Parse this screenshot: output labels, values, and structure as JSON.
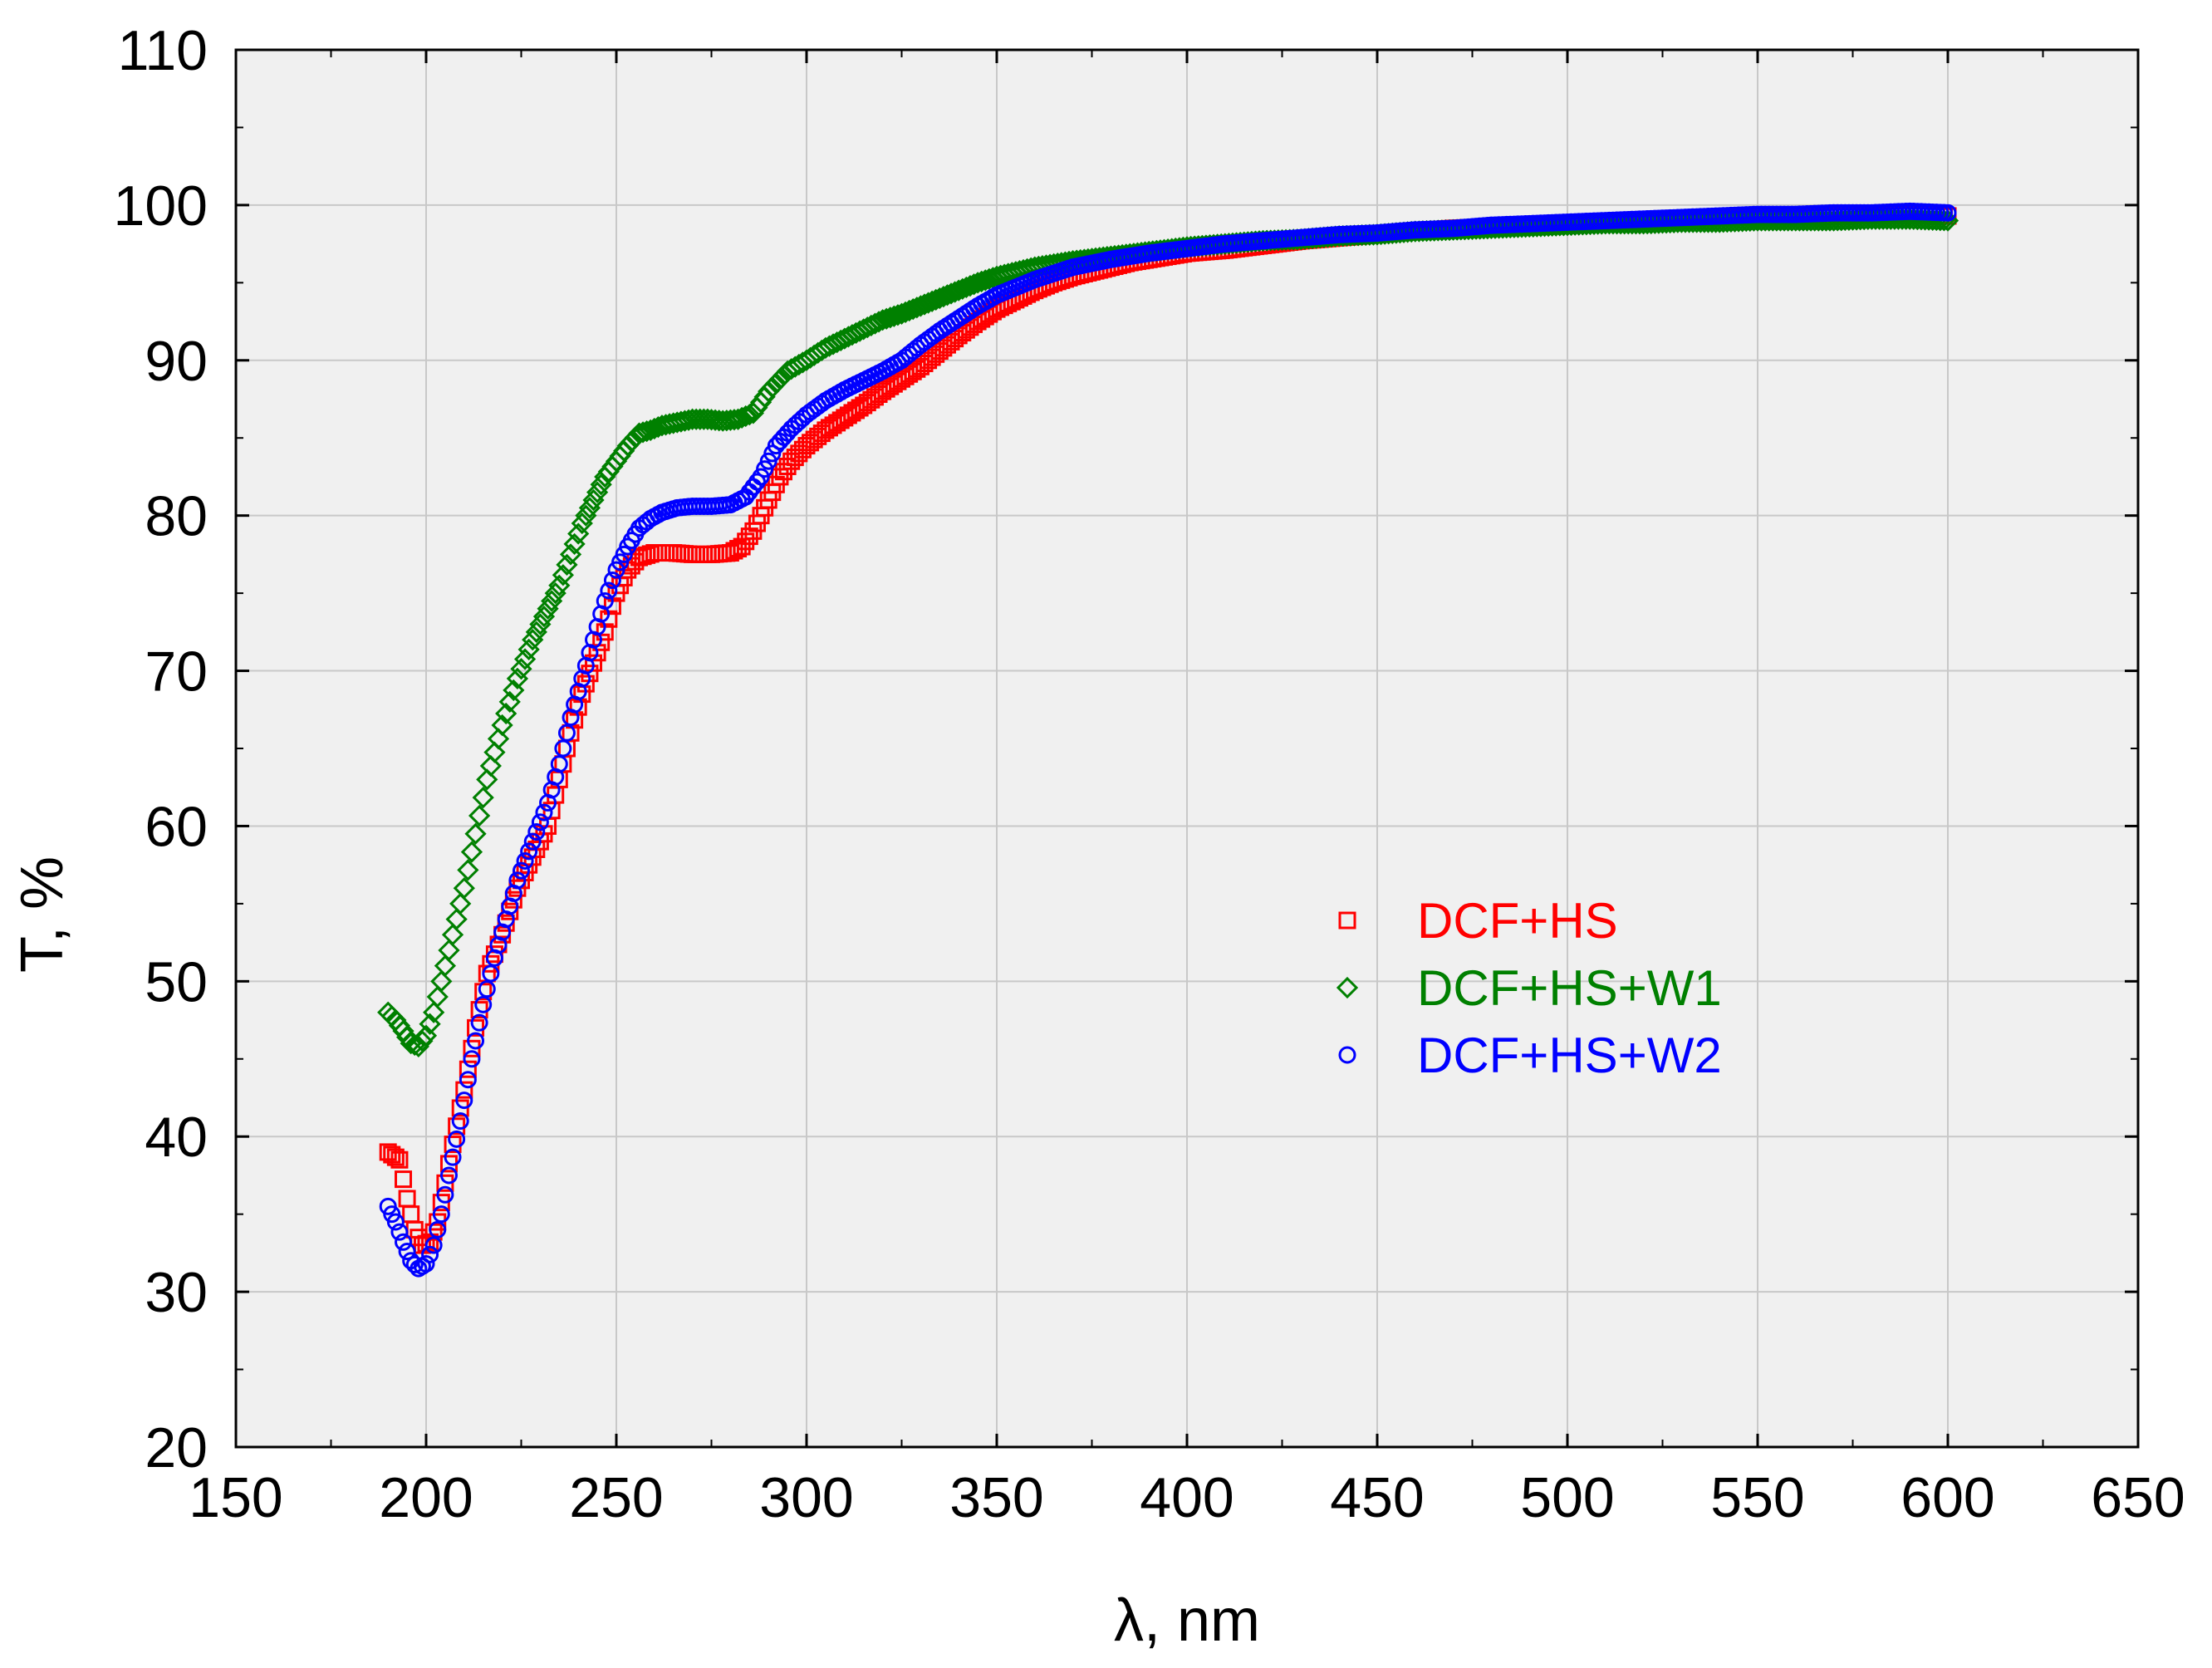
{
  "chart_data": {
    "type": "scatter",
    "xlabel": "λ, nm",
    "ylabel": "T, %",
    "xlim": [
      150,
      650
    ],
    "ylim": [
      20,
      110
    ],
    "x_ticks": [
      "150",
      "200",
      "250",
      "300",
      "350",
      "400",
      "450",
      "500",
      "550",
      "600",
      "650"
    ],
    "y_ticks": [
      "20",
      "30",
      "40",
      "50",
      "60",
      "70",
      "80",
      "90",
      "100",
      "110"
    ],
    "grid": true,
    "legend_position": "center-right",
    "plot_background": "#f0f0f0",
    "series": [
      {
        "name": "DCF+HS",
        "color": "#ff0000",
        "marker": "square",
        "points": [
          [
            190,
            39
          ],
          [
            193,
            38.5
          ],
          [
            195,
            36
          ],
          [
            197,
            34
          ],
          [
            199,
            33
          ],
          [
            201,
            33.2
          ],
          [
            203,
            34.5
          ],
          [
            205,
            37
          ],
          [
            207,
            39.5
          ],
          [
            210,
            43
          ],
          [
            213,
            47
          ],
          [
            216,
            50.5
          ],
          [
            220,
            53
          ],
          [
            224,
            56
          ],
          [
            228,
            58
          ],
          [
            232,
            60
          ],
          [
            235,
            63
          ],
          [
            238,
            66
          ],
          [
            241,
            68.5
          ],
          [
            244,
            70.5
          ],
          [
            247,
            72.5
          ],
          [
            250,
            75
          ],
          [
            253,
            76.5
          ],
          [
            256,
            77.3
          ],
          [
            260,
            77.6
          ],
          [
            265,
            77.6
          ],
          [
            270,
            77.5
          ],
          [
            275,
            77.5
          ],
          [
            280,
            77.6
          ],
          [
            283,
            78
          ],
          [
            286,
            79
          ],
          [
            290,
            81
          ],
          [
            293,
            82.5
          ],
          [
            296,
            83.5
          ],
          [
            300,
            84.5
          ],
          [
            305,
            85.5
          ],
          [
            310,
            86.3
          ],
          [
            315,
            87.1
          ],
          [
            320,
            88
          ],
          [
            325,
            88.8
          ],
          [
            330,
            89.6
          ],
          [
            335,
            90.6
          ],
          [
            340,
            91.6
          ],
          [
            345,
            92.5
          ],
          [
            350,
            93.3
          ],
          [
            355,
            93.9
          ],
          [
            360,
            94.5
          ],
          [
            365,
            95
          ],
          [
            370,
            95.4
          ],
          [
            375,
            95.7
          ],
          [
            380,
            96
          ],
          [
            385,
            96.3
          ],
          [
            390,
            96.5
          ],
          [
            395,
            96.7
          ],
          [
            400,
            96.9
          ],
          [
            410,
            97.1
          ],
          [
            420,
            97.4
          ],
          [
            430,
            97.7
          ],
          [
            440,
            97.9
          ],
          [
            450,
            98.1
          ],
          [
            460,
            98.3
          ],
          [
            470,
            98.5
          ],
          [
            480,
            98.6
          ],
          [
            490,
            98.7
          ],
          [
            500,
            98.8
          ],
          [
            510,
            98.9
          ],
          [
            520,
            99
          ],
          [
            530,
            99.1
          ],
          [
            540,
            99.2
          ],
          [
            550,
            99.2
          ],
          [
            560,
            99.3
          ],
          [
            570,
            99.3
          ],
          [
            580,
            99.4
          ],
          [
            590,
            99.4
          ],
          [
            600,
            99.3
          ]
        ]
      },
      {
        "name": "DCF+HS+W1",
        "color": "#008000",
        "marker": "diamond",
        "points": [
          [
            190,
            48
          ],
          [
            192,
            47.5
          ],
          [
            194,
            46.8
          ],
          [
            196,
            46
          ],
          [
            198,
            45.8
          ],
          [
            200,
            46.5
          ],
          [
            202,
            48
          ],
          [
            204,
            50
          ],
          [
            207,
            53
          ],
          [
            210,
            56
          ],
          [
            213,
            59.5
          ],
          [
            216,
            63
          ],
          [
            220,
            66.5
          ],
          [
            224,
            69.5
          ],
          [
            228,
            72
          ],
          [
            232,
            74
          ],
          [
            235,
            75.5
          ],
          [
            238,
            77.5
          ],
          [
            241,
            79.5
          ],
          [
            244,
            81
          ],
          [
            247,
            82.5
          ],
          [
            250,
            83.5
          ],
          [
            253,
            84.5
          ],
          [
            256,
            85.3
          ],
          [
            259,
            85.5
          ],
          [
            262,
            85.8
          ],
          [
            266,
            86
          ],
          [
            270,
            86.2
          ],
          [
            274,
            86.2
          ],
          [
            278,
            86.1
          ],
          [
            282,
            86.2
          ],
          [
            286,
            86.6
          ],
          [
            290,
            88
          ],
          [
            295,
            89.3
          ],
          [
            300,
            90
          ],
          [
            305,
            90.8
          ],
          [
            310,
            91.4
          ],
          [
            315,
            92
          ],
          [
            320,
            92.6
          ],
          [
            325,
            93
          ],
          [
            330,
            93.5
          ],
          [
            335,
            94
          ],
          [
            340,
            94.5
          ],
          [
            345,
            95
          ],
          [
            350,
            95.4
          ],
          [
            355,
            95.7
          ],
          [
            360,
            96
          ],
          [
            365,
            96.2
          ],
          [
            370,
            96.4
          ],
          [
            380,
            96.7
          ],
          [
            390,
            97
          ],
          [
            400,
            97.3
          ],
          [
            410,
            97.5
          ],
          [
            420,
            97.7
          ],
          [
            430,
            97.8
          ],
          [
            440,
            98
          ],
          [
            450,
            98.1
          ],
          [
            460,
            98.3
          ],
          [
            470,
            98.4
          ],
          [
            480,
            98.5
          ],
          [
            490,
            98.6
          ],
          [
            500,
            98.7
          ],
          [
            510,
            98.8
          ],
          [
            520,
            98.8
          ],
          [
            530,
            98.9
          ],
          [
            540,
            98.9
          ],
          [
            550,
            99
          ],
          [
            560,
            99
          ],
          [
            570,
            99
          ],
          [
            580,
            99.1
          ],
          [
            590,
            99.1
          ],
          [
            600,
            99
          ]
        ]
      },
      {
        "name": "DCF+HS+W2",
        "color": "#0000ff",
        "marker": "circle",
        "points": [
          [
            190,
            35.5
          ],
          [
            192,
            34.5
          ],
          [
            194,
            33.2
          ],
          [
            196,
            32
          ],
          [
            198,
            31.5
          ],
          [
            200,
            31.8
          ],
          [
            202,
            33
          ],
          [
            204,
            35
          ],
          [
            206,
            37.5
          ],
          [
            209,
            41
          ],
          [
            212,
            45
          ],
          [
            215,
            48.5
          ],
          [
            218,
            51.5
          ],
          [
            221,
            54
          ],
          [
            224,
            56.5
          ],
          [
            228,
            59
          ],
          [
            232,
            61.5
          ],
          [
            235,
            64
          ],
          [
            238,
            67
          ],
          [
            241,
            69.5
          ],
          [
            244,
            72
          ],
          [
            247,
            74.5
          ],
          [
            250,
            76.5
          ],
          [
            253,
            78
          ],
          [
            256,
            79.2
          ],
          [
            259,
            79.8
          ],
          [
            262,
            80.2
          ],
          [
            266,
            80.5
          ],
          [
            270,
            80.6
          ],
          [
            275,
            80.6
          ],
          [
            280,
            80.7
          ],
          [
            284,
            81.2
          ],
          [
            288,
            82.5
          ],
          [
            292,
            84.5
          ],
          [
            296,
            85.6
          ],
          [
            300,
            86.5
          ],
          [
            305,
            87.4
          ],
          [
            310,
            88.1
          ],
          [
            315,
            88.7
          ],
          [
            320,
            89.3
          ],
          [
            325,
            90
          ],
          [
            330,
            91
          ],
          [
            335,
            91.9
          ],
          [
            340,
            92.7
          ],
          [
            345,
            93.5
          ],
          [
            350,
            94.2
          ],
          [
            355,
            94.7
          ],
          [
            360,
            95.2
          ],
          [
            365,
            95.6
          ],
          [
            370,
            96
          ],
          [
            380,
            96.5
          ],
          [
            390,
            96.9
          ],
          [
            400,
            97.2
          ],
          [
            410,
            97.5
          ],
          [
            420,
            97.7
          ],
          [
            430,
            97.9
          ],
          [
            440,
            98.1
          ],
          [
            450,
            98.2
          ],
          [
            460,
            98.4
          ],
          [
            470,
            98.5
          ],
          [
            480,
            98.7
          ],
          [
            490,
            98.8
          ],
          [
            500,
            98.9
          ],
          [
            510,
            99
          ],
          [
            520,
            99.1
          ],
          [
            530,
            99.2
          ],
          [
            540,
            99.3
          ],
          [
            550,
            99.4
          ],
          [
            560,
            99.4
          ],
          [
            570,
            99.5
          ],
          [
            580,
            99.5
          ],
          [
            590,
            99.6
          ],
          [
            600,
            99.5
          ]
        ]
      }
    ]
  }
}
